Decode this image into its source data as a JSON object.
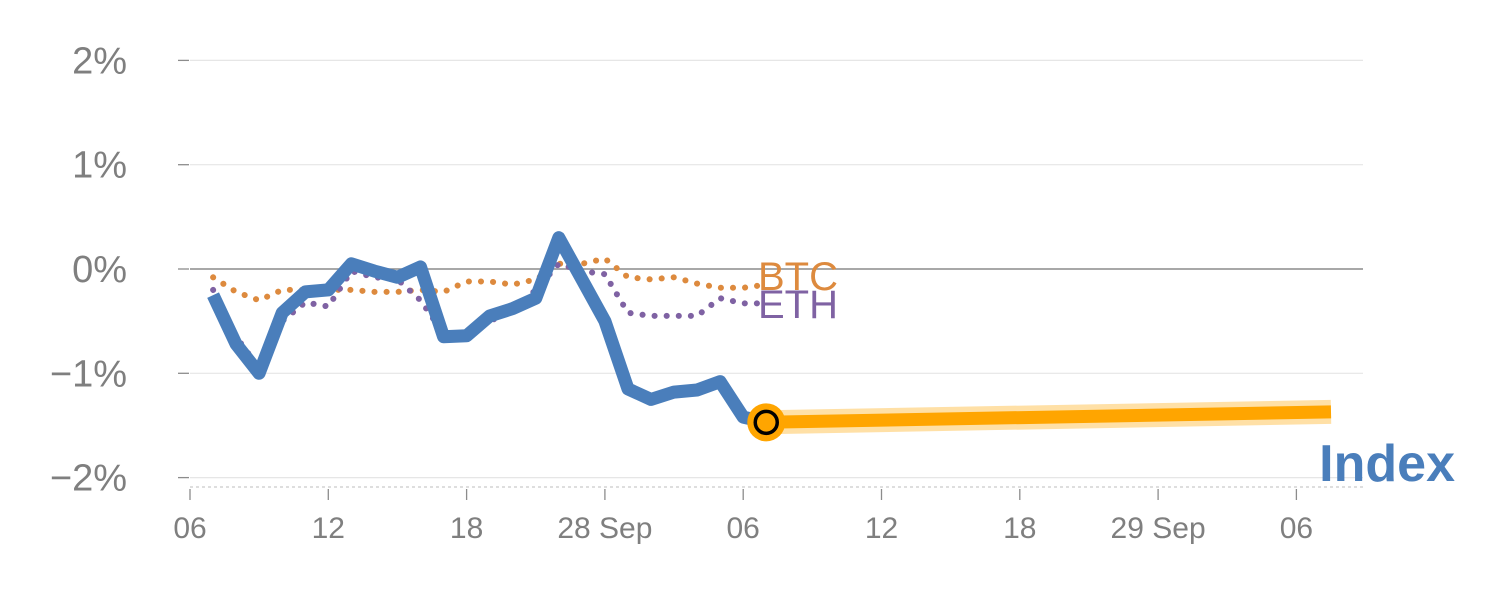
{
  "chart_data": {
    "type": "line",
    "title": "",
    "xlabel": "",
    "ylabel": "",
    "ylim": [
      -2.0,
      2.0
    ],
    "yticks": [
      {
        "value": 2,
        "label": "2%"
      },
      {
        "value": 1,
        "label": "1%"
      },
      {
        "value": 0,
        "label": "0%"
      },
      {
        "value": -1,
        "label": "−1%"
      },
      {
        "value": -2,
        "label": "−2%"
      }
    ],
    "xlim": [
      0,
      50
    ],
    "xticks": [
      {
        "value": 0,
        "label": "06"
      },
      {
        "value": 6,
        "label": "12"
      },
      {
        "value": 12,
        "label": "18"
      },
      {
        "value": 18,
        "label": "28 Sep"
      },
      {
        "value": 24,
        "label": "06"
      },
      {
        "value": 30,
        "label": "12"
      },
      {
        "value": 36,
        "label": "18"
      },
      {
        "value": 42,
        "label": "29 Sep"
      },
      {
        "value": 48,
        "label": "06"
      }
    ],
    "grid": true,
    "series": [
      {
        "name": "BTC",
        "color": "#dd8a3e",
        "style": "dotted",
        "x": [
          1,
          2,
          3,
          4,
          5,
          6,
          7,
          8,
          9,
          10,
          11,
          12,
          13,
          14,
          15,
          16,
          17,
          18,
          19,
          20,
          21,
          22,
          23,
          24,
          25
        ],
        "y": [
          -0.08,
          -0.22,
          -0.3,
          -0.2,
          -0.2,
          -0.2,
          -0.2,
          -0.22,
          -0.22,
          -0.2,
          -0.22,
          -0.12,
          -0.12,
          -0.15,
          -0.1,
          0.05,
          0.05,
          0.1,
          -0.08,
          -0.1,
          -0.08,
          -0.14,
          -0.18,
          -0.18,
          -0.15
        ]
      },
      {
        "name": "ETH",
        "color": "#7f62a3",
        "style": "dotted",
        "x": [
          1,
          2,
          3,
          4,
          5,
          6,
          7,
          8,
          9,
          10,
          11,
          12,
          13,
          14,
          15,
          16,
          17,
          18,
          19,
          20,
          21,
          22,
          23,
          24,
          25
        ],
        "y": [
          -0.2,
          -0.65,
          -0.95,
          -0.5,
          -0.32,
          -0.36,
          -0.02,
          -0.08,
          -0.1,
          -0.3,
          -0.62,
          -0.62,
          -0.5,
          -0.4,
          -0.2,
          0.05,
          -0.02,
          -0.05,
          -0.42,
          -0.45,
          -0.45,
          -0.45,
          -0.28,
          -0.33,
          -0.33
        ]
      },
      {
        "name": "Index",
        "color": "#4a7ebb",
        "style": "solid",
        "x": [
          1,
          2,
          3,
          4,
          5,
          6,
          7,
          8,
          9,
          10,
          11,
          12,
          13,
          14,
          15,
          16,
          17,
          18,
          19,
          20,
          21,
          22,
          23,
          24,
          25
        ],
        "y": [
          -0.25,
          -0.72,
          -1.0,
          -0.42,
          -0.22,
          -0.2,
          0.05,
          -0.02,
          -0.08,
          0.02,
          -0.65,
          -0.64,
          -0.45,
          -0.38,
          -0.28,
          0.3,
          -0.1,
          -0.5,
          -1.15,
          -1.25,
          -1.18,
          -1.16,
          -1.08,
          -1.42,
          -1.47
        ]
      }
    ],
    "projection": {
      "color": "#ffa500",
      "x": [
        25,
        49.5
      ],
      "y": [
        -1.47,
        -1.37
      ]
    },
    "current_marker": {
      "x": 25,
      "y": -1.47
    },
    "labels": {
      "btc": "BTC",
      "eth": "ETH",
      "index": "Index"
    }
  }
}
